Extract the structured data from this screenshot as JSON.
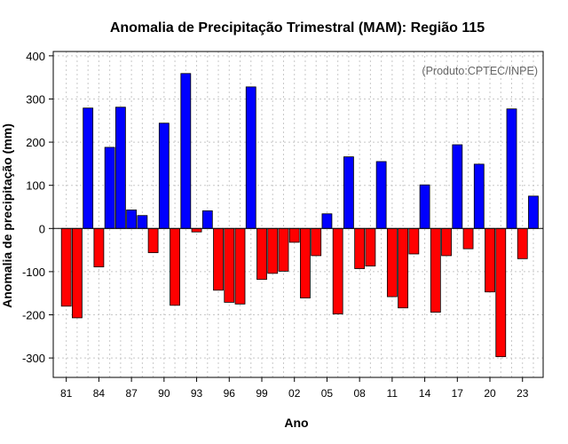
{
  "chart_data": {
    "type": "bar",
    "title": "Anomalia de Precipitação Trimestral (MAM): Região 115",
    "xlabel": "Ano",
    "ylabel": "Anomalia de precipitação (mm)",
    "watermark": "(Produto:CPTEC/INPE)",
    "ylim": [
      -345,
      410
    ],
    "yticks": [
      -300,
      -200,
      -100,
      0,
      100,
      200,
      300,
      400
    ],
    "ytick_labels": [
      "-300",
      "-200",
      "-100",
      "0",
      "100",
      "200",
      "300",
      "400"
    ],
    "xlim": [
      1979.8,
      2024.9
    ],
    "xticks": [
      1981,
      1984,
      1987,
      1990,
      1993,
      1996,
      1999,
      2002,
      2005,
      2008,
      2011,
      2014,
      2017,
      2020,
      2023
    ],
    "xtick_labels": [
      "81",
      "84",
      "87",
      "90",
      "93",
      "96",
      "99",
      "02",
      "05",
      "08",
      "11",
      "14",
      "17",
      "20",
      "23"
    ],
    "grid": true,
    "colors": {
      "positive": "#0000ff",
      "negative": "#ff0000",
      "grid": "#c8c8c8",
      "axis": "#000000"
    },
    "years": [
      1981,
      1982,
      1983,
      1984,
      1985,
      1986,
      1987,
      1988,
      1989,
      1990,
      1991,
      1992,
      1993,
      1994,
      1995,
      1996,
      1997,
      1998,
      1999,
      2000,
      2001,
      2002,
      2003,
      2004,
      2005,
      2006,
      2007,
      2008,
      2009,
      2010,
      2011,
      2012,
      2013,
      2014,
      2015,
      2016,
      2017,
      2018,
      2019,
      2020,
      2021,
      2022,
      2023,
      2024
    ],
    "values": [
      -180,
      -207,
      279,
      -89,
      188,
      281,
      43,
      30,
      -56,
      244,
      -178,
      359,
      -8,
      41,
      -143,
      -171,
      -175,
      328,
      -118,
      -104,
      -99,
      -32,
      -161,
      -63,
      34,
      -198,
      166,
      -93,
      -87,
      155,
      -158,
      -184,
      -59,
      101,
      -194,
      -63,
      194,
      -47,
      149,
      -147,
      -297,
      277,
      -70,
      75
    ]
  }
}
